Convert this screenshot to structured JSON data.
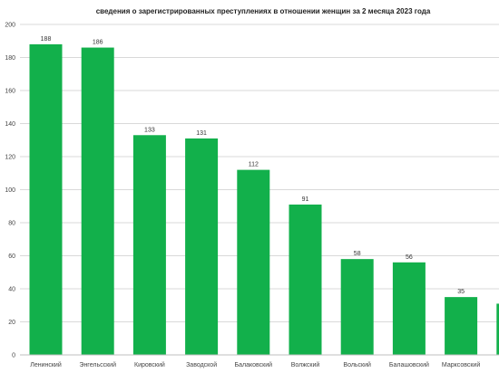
{
  "chart_data": {
    "type": "bar",
    "title": "сведения о зарегистрированных преступлениях в отношении женщин за 2 месяца 2023 года",
    "xlabel": "",
    "ylabel": "",
    "ylim": [
      0,
      200
    ],
    "yticks": [
      0,
      20,
      40,
      60,
      80,
      100,
      120,
      140,
      160,
      180,
      200
    ],
    "categories": [
      "Ленинский",
      "Энгельсский",
      "Кировский",
      "Заводской",
      "Балаковский",
      "Волжский",
      "Вольский",
      "Балашовский",
      "Марксовский",
      "Р"
    ],
    "values": [
      188,
      186,
      133,
      131,
      112,
      91,
      58,
      56,
      35,
      31
    ],
    "data_labels": [
      "188",
      "186",
      "133",
      "131",
      "112",
      "91",
      "58",
      "56",
      "35",
      ""
    ],
    "bar_color": "#12b04b",
    "grid": true,
    "legend": "none"
  }
}
